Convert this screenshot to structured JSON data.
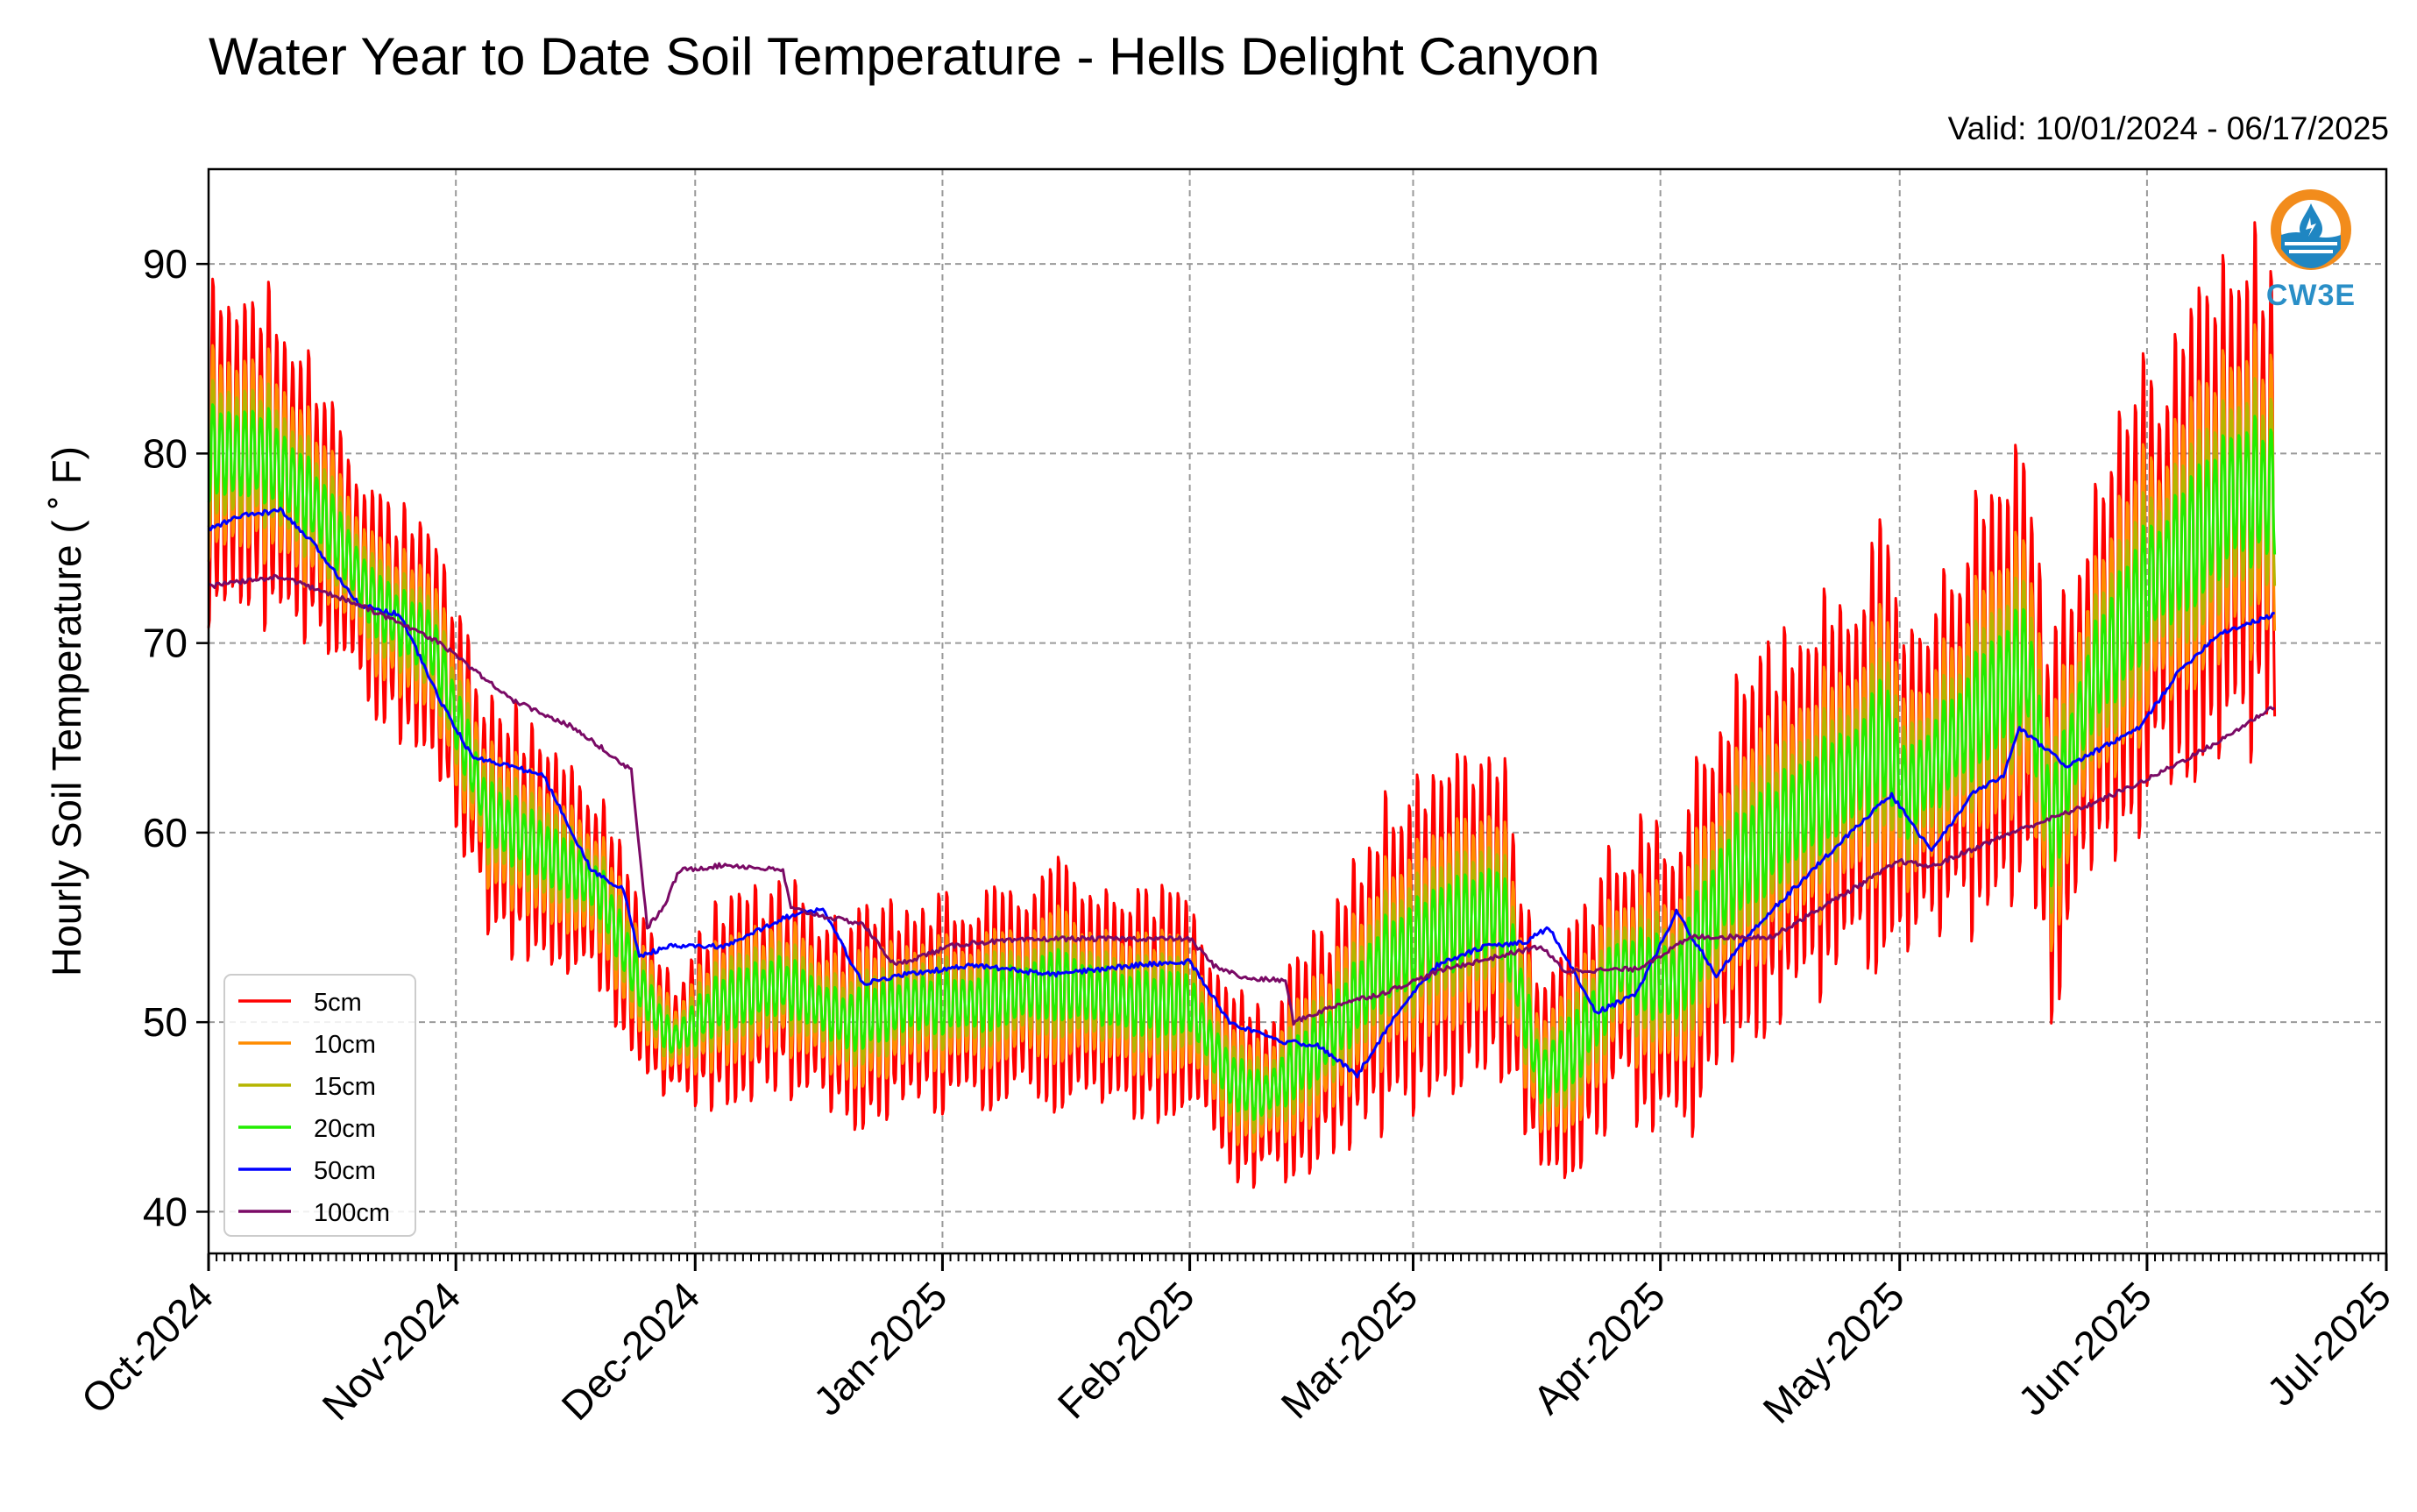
{
  "chart_data": {
    "type": "line",
    "title": "Water Year to Date Soil Temperature - Hells Delight Canyon",
    "subtitle": "Valid: 10/01/2024 - 06/17/2025",
    "ylabel": "Hourly Soil Temperature ( ˚ F)",
    "xlabel": "",
    "ylim": [
      37.8,
      95.0
    ],
    "xlim": [
      "2024-10-01",
      "2025-07-01"
    ],
    "yticks": [
      40,
      50,
      60,
      70,
      80,
      90
    ],
    "xticks": [
      "Oct-2024",
      "Nov-2024",
      "Dec-2024",
      "Jan-2025",
      "Feb-2025",
      "Mar-2025",
      "Apr-2025",
      "May-2025",
      "Jun-2025",
      "Jul-2025"
    ],
    "xtick_dates": [
      "2024-10-01",
      "2024-11-01",
      "2024-12-01",
      "2025-01-01",
      "2025-02-01",
      "2025-03-01",
      "2025-04-01",
      "2025-05-01",
      "2025-06-01",
      "2025-07-01"
    ],
    "grid": true,
    "legend_position": "lower-left",
    "logo": "CW3E",
    "series": [
      {
        "name": "5cm",
        "color": "#ff0000",
        "amp_factor": 1.0,
        "dates": [
          "2024-10-01",
          "2024-10-08",
          "2024-10-15",
          "2024-10-22",
          "2024-10-29",
          "2024-11-05",
          "2024-11-12",
          "2024-11-19",
          "2024-11-24",
          "2024-11-28",
          "2024-12-04",
          "2024-12-12",
          "2024-12-20",
          "2024-12-28",
          "2025-01-05",
          "2025-01-15",
          "2025-01-25",
          "2025-02-01",
          "2025-02-06",
          "2025-02-10",
          "2025-02-18",
          "2025-02-25",
          "2025-03-05",
          "2025-03-12",
          "2025-03-17",
          "2025-03-22",
          "2025-03-27",
          "2025-04-03",
          "2025-04-10",
          "2025-04-18",
          "2025-04-25",
          "2025-04-29",
          "2025-05-02",
          "2025-05-10",
          "2025-05-17",
          "2025-05-20",
          "2025-05-25",
          "2025-06-01",
          "2025-06-08",
          "2025-06-12",
          "2025-06-17"
        ],
        "values": [
          80,
          80,
          77,
          72,
          70,
          61,
          59,
          57,
          52,
          49,
          51,
          52,
          50,
          51,
          51,
          52,
          51,
          51,
          47,
          46,
          49,
          53,
          55,
          56,
          47,
          49,
          53,
          52,
          58,
          61,
          63,
          65,
          62,
          66,
          69,
          60,
          68,
          73,
          76,
          78,
          78
        ],
        "amps": [
          8,
          8,
          7,
          6,
          5,
          6,
          6,
          5,
          4,
          3,
          5,
          5,
          5,
          5,
          5,
          6,
          6,
          5,
          5,
          4,
          6,
          8,
          8,
          8,
          5,
          6,
          7,
          8,
          9,
          10,
          11,
          10,
          8,
          11,
          12,
          10,
          10,
          11,
          12,
          13,
          12
        ]
      },
      {
        "name": "10cm",
        "color": "#ff8c00",
        "amp_factor": 0.62
      },
      {
        "name": "15cm",
        "color": "#b5b500",
        "amp_factor": 0.42
      },
      {
        "name": "20cm",
        "color": "#22ee00",
        "amp_factor": 0.28
      },
      {
        "name": "50cm",
        "color": "#0000ff",
        "dates": [
          "2024-10-01",
          "2024-10-05",
          "2024-10-10",
          "2024-10-14",
          "2024-10-20",
          "2024-10-25",
          "2024-10-30",
          "2024-11-03",
          "2024-11-08",
          "2024-11-12",
          "2024-11-18",
          "2024-11-22",
          "2024-11-24",
          "2024-11-28",
          "2024-12-05",
          "2024-12-12",
          "2024-12-17",
          "2024-12-22",
          "2024-12-27",
          "2025-01-05",
          "2025-01-15",
          "2025-01-25",
          "2025-02-01",
          "2025-02-06",
          "2025-02-12",
          "2025-02-17",
          "2025-02-22",
          "2025-02-27",
          "2025-03-04",
          "2025-03-10",
          "2025-03-15",
          "2025-03-18",
          "2025-03-24",
          "2025-03-29",
          "2025-04-03",
          "2025-04-08",
          "2025-04-14",
          "2025-04-20",
          "2025-04-26",
          "2025-04-30",
          "2025-05-05",
          "2025-05-10",
          "2025-05-14",
          "2025-05-16",
          "2025-05-22",
          "2025-05-31",
          "2025-06-05",
          "2025-06-10",
          "2025-06-17"
        ],
        "values": [
          76.0,
          76.7,
          77.0,
          75.3,
          72.0,
          71.5,
          67.0,
          64.0,
          63.5,
          63.0,
          58.0,
          57.0,
          53.5,
          54.0,
          54.0,
          55.5,
          56.0,
          52.0,
          52.5,
          53.0,
          52.5,
          53.0,
          53.2,
          50.0,
          49.0,
          48.8,
          47.2,
          50.5,
          53.0,
          54.0,
          54.2,
          55.0,
          50.5,
          51.5,
          55.8,
          52.5,
          55.5,
          58.0,
          60.5,
          62.0,
          59.0,
          62.0,
          63.0,
          65.5,
          63.5,
          65.5,
          68.5,
          70.5,
          71.5
        ]
      },
      {
        "name": "100cm",
        "color": "#7a0a66",
        "dates": [
          "2024-10-01",
          "2024-10-10",
          "2024-10-20",
          "2024-10-30",
          "2024-11-08",
          "2024-11-16",
          "2024-11-23",
          "2024-11-25",
          "2024-11-27",
          "2024-11-29",
          "2024-12-05",
          "2024-12-12",
          "2024-12-13",
          "2024-12-18",
          "2024-12-22",
          "2024-12-26",
          "2025-01-02",
          "2025-01-05",
          "2025-01-15",
          "2025-01-25",
          "2025-02-01",
          "2025-02-04",
          "2025-02-08",
          "2025-02-13",
          "2025-02-14",
          "2025-02-20",
          "2025-02-25",
          "2025-03-05",
          "2025-03-12",
          "2025-03-17",
          "2025-03-20",
          "2025-03-29",
          "2025-04-05",
          "2025-04-15",
          "2025-04-25",
          "2025-05-01",
          "2025-05-05",
          "2025-05-15",
          "2025-05-25",
          "2025-06-01",
          "2025-06-10",
          "2025-06-17"
        ],
        "values": [
          73.0,
          73.5,
          72.0,
          70.0,
          67.0,
          65.5,
          63.3,
          55.0,
          56.0,
          58.0,
          58.3,
          58.0,
          56.0,
          55.5,
          55.2,
          53.0,
          54.0,
          54.2,
          54.4,
          54.4,
          54.4,
          53.0,
          52.3,
          52.2,
          50.0,
          51.0,
          51.5,
          52.8,
          53.5,
          54.0,
          52.7,
          52.8,
          54.5,
          54.5,
          57.0,
          58.5,
          58.2,
          60.0,
          61.5,
          62.8,
          64.8,
          66.7
        ]
      }
    ]
  }
}
